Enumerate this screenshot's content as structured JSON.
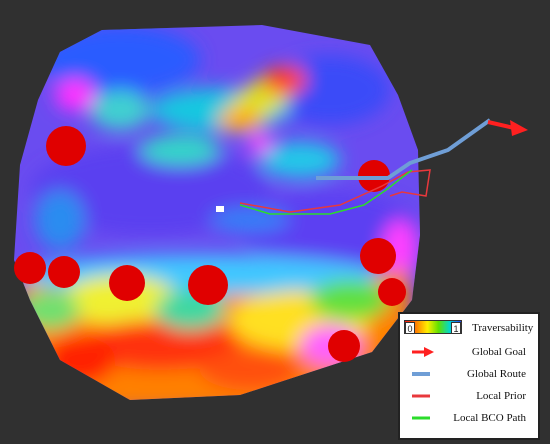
{
  "legend": {
    "scale_min": "0",
    "scale_max": "1",
    "traversability": "Traversability",
    "global_goal": "Global Goal",
    "global_route": "Global Route",
    "local_prior": "Local Prior",
    "local_bco_path": "Local BCO Path"
  },
  "colors": {
    "global_goal": "#ff2020",
    "global_route": "#6f9ed6",
    "local_prior": "#e8383c",
    "local_bco_path": "#2bdc2b",
    "obstacle": "#e00000",
    "background": "#303030"
  }
}
